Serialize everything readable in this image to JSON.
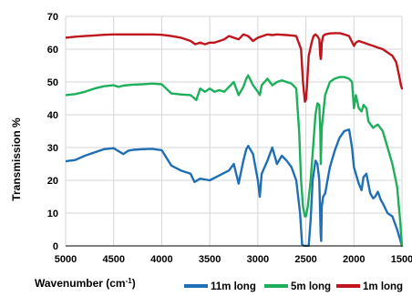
{
  "chart_data": {
    "type": "line",
    "title": "",
    "xlabel": "Wavenumber (cm",
    "xlabel_sup": "-1",
    "xlabel_close": ")",
    "ylabel": "Transmission   %",
    "xlim": [
      5000,
      1500
    ],
    "ylim": [
      0,
      70
    ],
    "x_ticks": [
      "5000",
      "4500",
      "4000",
      "3500",
      "3000",
      "2500",
      "2000",
      "1500"
    ],
    "y_ticks": [
      "0",
      "10",
      "20",
      "30",
      "40",
      "50",
      "60",
      "70"
    ],
    "grid": true,
    "legend_position": "bottom",
    "series": [
      {
        "name": "11m long",
        "color": "#1f6fb4",
        "x": [
          5000,
          4900,
          4800,
          4700,
          4600,
          4500,
          4400,
          4350,
          4300,
          4200,
          4100,
          4000,
          3900,
          3800,
          3700,
          3660,
          3600,
          3500,
          3400,
          3300,
          3250,
          3200,
          3150,
          3120,
          3100,
          3050,
          3000,
          2980,
          2960,
          2900,
          2850,
          2800,
          2750,
          2700,
          2650,
          2600,
          2560,
          2540,
          2520,
          2500,
          2490,
          2470,
          2450,
          2430,
          2400,
          2380,
          2360,
          2345,
          2340,
          2335,
          2320,
          2300,
          2250,
          2200,
          2150,
          2100,
          2050,
          2020,
          2000,
          1980,
          1950,
          1920,
          1900,
          1870,
          1850,
          1830,
          1800,
          1780,
          1750,
          1720,
          1700,
          1650,
          1600,
          1550,
          1520,
          1500
        ],
        "values": [
          25.8,
          26.2,
          27.5,
          28.5,
          29.5,
          29.8,
          28.0,
          29.0,
          29.3,
          29.5,
          29.6,
          29.2,
          24.5,
          23.0,
          22.0,
          19.5,
          20.5,
          20.0,
          21.5,
          23.0,
          25.0,
          19.0,
          26.0,
          29.5,
          30.5,
          28.0,
          20.0,
          15.0,
          22.0,
          26.0,
          30.0,
          25.0,
          27.5,
          26.0,
          24.0,
          20.0,
          10.0,
          0.5,
          0.0,
          0.0,
          0.0,
          0.0,
          8.0,
          20.0,
          26.0,
          25.0,
          20.0,
          3.0,
          1.5,
          12.0,
          15.0,
          16.0,
          24.0,
          29.0,
          33.0,
          35.0,
          35.5,
          30.0,
          24.0,
          22.0,
          19.0,
          17.0,
          21.0,
          22.0,
          19.0,
          16.0,
          14.5,
          15.0,
          16.5,
          14.0,
          13.0,
          10.0,
          9.0,
          5.0,
          2.0,
          0.0
        ]
      },
      {
        "name": "5m long",
        "color": "#1eaf5b",
        "x": [
          5000,
          4900,
          4800,
          4700,
          4600,
          4500,
          4450,
          4400,
          4300,
          4200,
          4100,
          4000,
          3900,
          3800,
          3700,
          3660,
          3640,
          3600,
          3550,
          3500,
          3450,
          3400,
          3350,
          3300,
          3250,
          3200,
          3150,
          3120,
          3100,
          3050,
          3000,
          2980,
          2960,
          2900,
          2850,
          2800,
          2750,
          2700,
          2650,
          2600,
          2570,
          2550,
          2530,
          2510,
          2500,
          2480,
          2450,
          2420,
          2400,
          2380,
          2360,
          2350,
          2345,
          2340,
          2335,
          2320,
          2300,
          2250,
          2200,
          2150,
          2100,
          2050,
          2020,
          2000,
          1980,
          1950,
          1920,
          1900,
          1870,
          1850,
          1800,
          1780,
          1750,
          1700,
          1650,
          1600,
          1550,
          1520,
          1500
        ],
        "values": [
          46.0,
          46.3,
          47.0,
          48.0,
          48.7,
          49.0,
          48.5,
          48.9,
          49.2,
          49.3,
          49.5,
          49.3,
          46.5,
          46.2,
          46.0,
          45.0,
          44.5,
          48.0,
          47.0,
          48.0,
          47.0,
          47.5,
          47.0,
          48.5,
          50.0,
          46.0,
          48.5,
          51.0,
          52.0,
          49.0,
          47.0,
          46.0,
          49.0,
          51.0,
          49.0,
          50.0,
          50.5,
          50.0,
          49.5,
          48.0,
          35.0,
          20.0,
          12.0,
          9.0,
          9.0,
          12.0,
          20.0,
          32.0,
          40.0,
          43.5,
          43.0,
          35.0,
          25.0,
          30.0,
          36.0,
          40.0,
          46.0,
          50.0,
          51.0,
          51.5,
          51.5,
          51.0,
          50.0,
          42.0,
          46.0,
          42.0,
          41.0,
          43.0,
          42.0,
          38.0,
          36.0,
          36.5,
          37.0,
          35.0,
          30.0,
          25.0,
          18.0,
          8.0,
          0.0
        ]
      },
      {
        "name": "1m long",
        "color": "#c0151c",
        "x": [
          5000,
          4900,
          4800,
          4700,
          4600,
          4500,
          4400,
          4300,
          4200,
          4100,
          4000,
          3900,
          3800,
          3700,
          3650,
          3600,
          3550,
          3500,
          3450,
          3400,
          3350,
          3300,
          3250,
          3200,
          3150,
          3100,
          3050,
          3000,
          2950,
          2900,
          2850,
          2800,
          2750,
          2700,
          2650,
          2600,
          2550,
          2530,
          2510,
          2500,
          2490,
          2470,
          2440,
          2420,
          2400,
          2380,
          2360,
          2350,
          2345,
          2340,
          2335,
          2320,
          2300,
          2250,
          2200,
          2150,
          2100,
          2050,
          2000,
          1980,
          1950,
          1900,
          1850,
          1800,
          1750,
          1700,
          1650,
          1600,
          1560,
          1530,
          1510,
          1500
        ],
        "values": [
          63.5,
          63.8,
          64.0,
          64.2,
          64.4,
          64.5,
          64.5,
          64.5,
          64.5,
          64.5,
          64.4,
          64.0,
          63.5,
          62.5,
          61.5,
          62.0,
          61.5,
          62.0,
          62.0,
          62.5,
          63.0,
          64.0,
          63.5,
          63.0,
          64.5,
          64.0,
          62.5,
          63.5,
          64.0,
          64.5,
          64.3,
          64.5,
          64.4,
          64.3,
          64.2,
          64.0,
          60.0,
          50.0,
          44.0,
          44.5,
          48.0,
          58.0,
          62.0,
          64.0,
          64.5,
          64.0,
          63.0,
          58.0,
          57.0,
          58.0,
          62.0,
          64.0,
          64.5,
          64.8,
          64.9,
          64.9,
          64.5,
          64.0,
          61.0,
          62.0,
          62.5,
          62.0,
          61.5,
          61.0,
          60.5,
          60.0,
          59.0,
          58.0,
          56.0,
          52.0,
          49.0,
          48.0
        ]
      }
    ]
  }
}
